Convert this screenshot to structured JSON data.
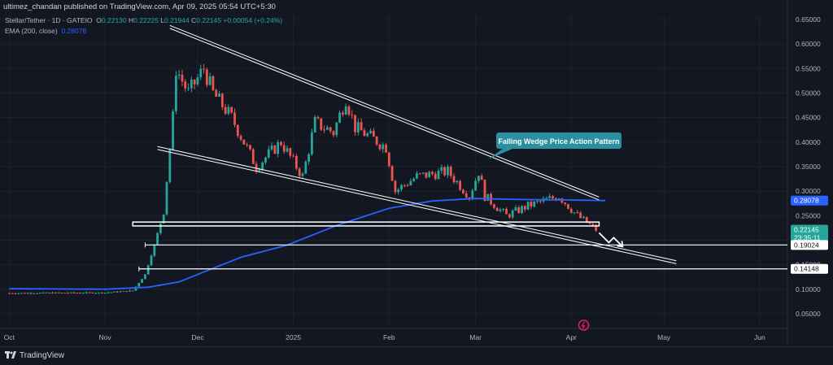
{
  "header": {
    "published_by": "ultimez_chandan published on TradingView.com, Apr 09, 2025 05:54 UTC+5:30",
    "symbol": "Stellar/Tether · 1D · GATEIO",
    "ohlc": {
      "open_label": "O",
      "open": "0.22130",
      "high_label": "H",
      "high": "0.22225",
      "low_label": "L",
      "low": "0.21944",
      "close_label": "C",
      "close": "0.22145",
      "change": "+0.00054 (+0.24%)"
    },
    "ema_label": "EMA (200, close)",
    "ema_value": "0.28078"
  },
  "annotation": {
    "text": "Falling Wedge Price Action Pattern"
  },
  "price_labels": {
    "ema": "0.28078",
    "last_price": "0.22145",
    "countdown": "23:35:11",
    "support_1": "0.19024",
    "support_2": "0.14148"
  },
  "footer": {
    "brand": "TradingView"
  },
  "colors": {
    "background": "#131722",
    "up": "#26a69a",
    "down": "#ef5350",
    "ema": "#2962ff",
    "lines": "#ffffff",
    "annotation": "#2a8fa0"
  },
  "chart_data": {
    "type": "candlestick",
    "title": "",
    "x_axis": {
      "tick_labels": [
        "Oct",
        "Nov",
        "Dec",
        "2025",
        "Feb",
        "Mar",
        "Apr",
        "May",
        "Jun"
      ]
    },
    "y_axis": {
      "tick_labels": [
        "0.65000",
        "0.60000",
        "0.55000",
        "0.50000",
        "0.45000",
        "0.40000",
        "0.35000",
        "0.30000",
        "0.25000",
        "0.20000",
        "0.15000",
        "0.10000",
        "0.05000"
      ],
      "ylim": [
        0.02,
        0.66
      ]
    },
    "grid": true,
    "price_anchors": [
      {
        "date": "2024-10-01",
        "close": 0.092
      },
      {
        "date": "2024-11-01",
        "close": 0.093
      },
      {
        "date": "2024-11-10",
        "close": 0.097
      },
      {
        "date": "2024-11-14",
        "close": 0.13
      },
      {
        "date": "2024-11-17",
        "close": 0.19
      },
      {
        "date": "2024-11-20",
        "close": 0.26
      },
      {
        "date": "2024-11-23",
        "close": 0.45
      },
      {
        "date": "2024-11-24",
        "close": 0.55
      },
      {
        "date": "2024-11-28",
        "close": 0.5
      },
      {
        "date": "2024-12-03",
        "close": 0.55
      },
      {
        "date": "2024-12-06",
        "close": 0.5
      },
      {
        "date": "2024-12-12",
        "close": 0.45
      },
      {
        "date": "2024-12-20",
        "close": 0.35
      },
      {
        "date": "2024-12-28",
        "close": 0.4
      },
      {
        "date": "2025-01-04",
        "close": 0.33
      },
      {
        "date": "2025-01-08",
        "close": 0.44
      },
      {
        "date": "2025-01-14",
        "close": 0.42
      },
      {
        "date": "2025-01-18",
        "close": 0.49
      },
      {
        "date": "2025-01-21",
        "close": 0.43
      },
      {
        "date": "2025-01-31",
        "close": 0.39
      },
      {
        "date": "2025-02-03",
        "close": 0.3
      },
      {
        "date": "2025-02-10",
        "close": 0.33
      },
      {
        "date": "2025-02-20",
        "close": 0.34
      },
      {
        "date": "2025-02-27",
        "close": 0.29
      },
      {
        "date": "2025-03-02",
        "close": 0.34
      },
      {
        "date": "2025-03-04",
        "close": 0.29
      },
      {
        "date": "2025-03-11",
        "close": 0.25
      },
      {
        "date": "2025-03-18",
        "close": 0.27
      },
      {
        "date": "2025-03-28",
        "close": 0.29
      },
      {
        "date": "2025-04-03",
        "close": 0.25
      },
      {
        "date": "2025-04-09",
        "close": 0.22145
      }
    ],
    "ema_200_anchors": [
      {
        "date": "2024-10-01",
        "value": 0.101
      },
      {
        "date": "2024-11-01",
        "value": 0.1
      },
      {
        "date": "2024-11-15",
        "value": 0.104
      },
      {
        "date": "2024-11-25",
        "value": 0.115
      },
      {
        "date": "2024-12-05",
        "value": 0.14
      },
      {
        "date": "2024-12-15",
        "value": 0.165
      },
      {
        "date": "2024-12-30",
        "value": 0.19
      },
      {
        "date": "2025-01-15",
        "value": 0.23
      },
      {
        "date": "2025-02-01",
        "value": 0.265
      },
      {
        "date": "2025-02-15",
        "value": 0.28
      },
      {
        "date": "2025-03-01",
        "value": 0.285
      },
      {
        "date": "2025-03-15",
        "value": 0.283
      },
      {
        "date": "2025-03-31",
        "value": 0.282
      },
      {
        "date": "2025-04-12",
        "value": 0.28078
      }
    ],
    "drawings": {
      "upper_trendline": [
        {
          "date": "2024-11-22",
          "price": 0.635
        },
        {
          "date": "2025-04-10",
          "price": 0.285
        }
      ],
      "lower_trendline": [
        {
          "date": "2024-11-18",
          "price": 0.388
        },
        {
          "date": "2025-05-05",
          "price": 0.155
        }
      ],
      "resistance_zone": {
        "start": "2024-11-10",
        "end": "2025-04-10",
        "top": 0.237,
        "bottom": 0.229
      },
      "support_line_1": {
        "start": "2024-11-14",
        "price": 0.19024
      },
      "support_line_2": {
        "start": "2024-11-12",
        "price": 0.14148
      }
    }
  }
}
